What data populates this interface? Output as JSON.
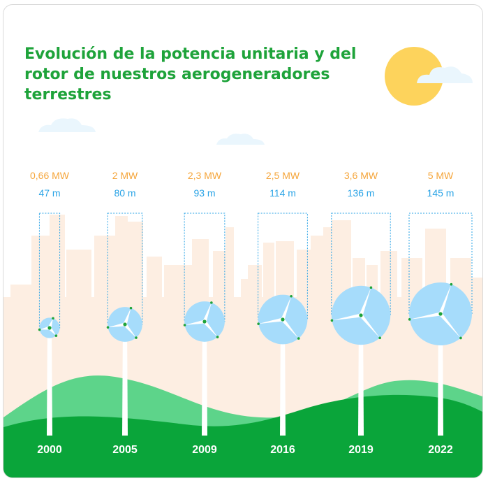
{
  "title": "Evolución de la potencia unitaria y del rotor de nuestros aerogeneradores terrestres",
  "colors": {
    "title": "#1ea33a",
    "power": "#f5a53a",
    "rotor": "#29a3e6",
    "rotor_fill": "#a6dcfb",
    "ground_dark": "#0aa53a",
    "ground_light": "#5dd48a",
    "buildings": "#fdeee2",
    "sun": "#fdd35c"
  },
  "chart_data": {
    "type": "bar",
    "title": "Evolución de la potencia unitaria y del rotor de nuestros aerogeneradores terrestres",
    "categories": [
      "2000",
      "2005",
      "2009",
      "2016",
      "2019",
      "2022"
    ],
    "series": [
      {
        "values": [
          0.66,
          2,
          2.3,
          2.5,
          3.6,
          5
        ],
        "labels": [
          "0,66 MW",
          "2 MW",
          "2,3 MW",
          "2,5 MW",
          "3,6 MW",
          "5 MW"
        ],
        "unit": "MW"
      },
      {
        "values": [
          47,
          80,
          93,
          114,
          136,
          145
        ],
        "labels": [
          "47 m",
          "80 m",
          "93 m",
          "114 m",
          "136 m",
          "145 m"
        ],
        "unit": "m"
      }
    ],
    "legend": "none",
    "grid": false
  }
}
